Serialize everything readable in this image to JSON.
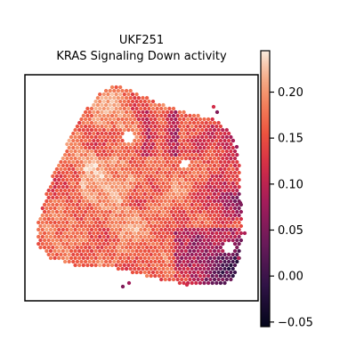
{
  "chart_data": {
    "type": "heatmap",
    "title_lines": [
      "UKF251",
      "KRAS Signaling Down activity"
    ],
    "xlabel": "",
    "ylabel": "",
    "colorbar": {
      "colormap": "rocket",
      "range": [
        -0.055,
        0.245
      ],
      "ticks": [
        -0.05,
        0.0,
        0.05,
        0.1,
        0.15,
        0.2
      ],
      "tick_labels": [
        "−0.05",
        "0.00",
        "0.05",
        "0.10",
        "0.15",
        "0.20"
      ]
    },
    "grid": false,
    "axes_ticks_shown": false,
    "tissue_shape": "irregular quadrilateral (wide base, narrow top)",
    "value_summary": {
      "predominant_range": [
        0.12,
        0.23
      ],
      "high_regions": [
        "upper-left",
        "center",
        "lower-left"
      ],
      "low_regions": [
        "right edge",
        "lower-right"
      ]
    }
  }
}
